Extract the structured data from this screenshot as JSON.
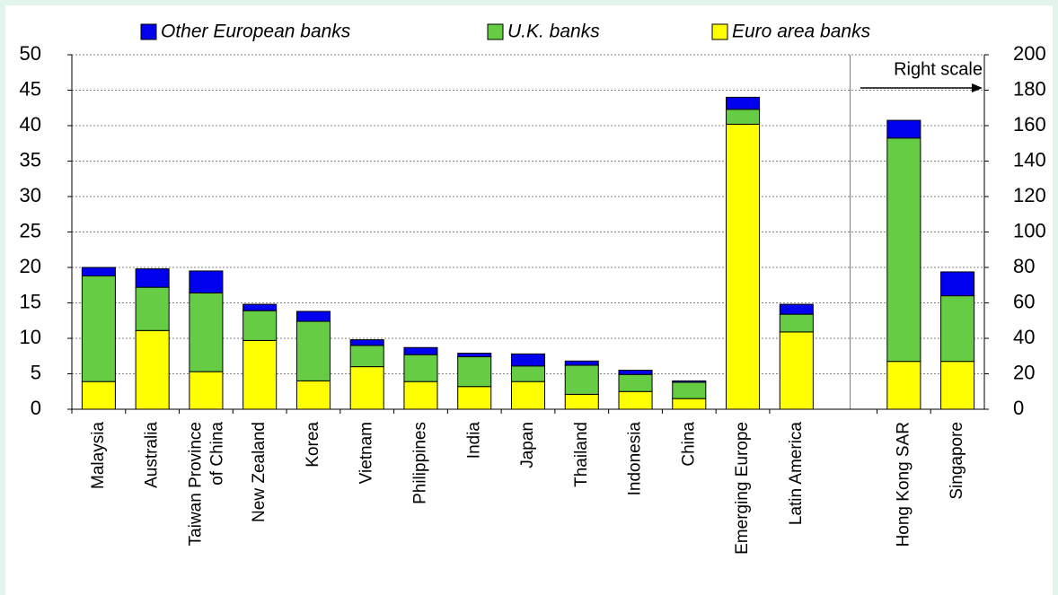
{
  "chart_data": {
    "type": "stacked_bar",
    "categories": [
      "Malaysia",
      "Australia",
      "Taiwan Province of China",
      "New Zealand",
      "Korea",
      "Vietnam",
      "Philippines",
      "India",
      "Japan",
      "Thailand",
      "Indonesia",
      "China",
      "Emerging Europe",
      "Latin America",
      null,
      "Hong Kong SAR",
      "Singapore"
    ],
    "series": [
      {
        "name": "Euro area  banks",
        "color": "#ffff00",
        "values": [
          3.9,
          11.1,
          5.3,
          9.7,
          4.0,
          6.0,
          3.9,
          3.2,
          3.9,
          2.1,
          2.5,
          1.5,
          40.2,
          10.9,
          null,
          null,
          null
        ]
      },
      {
        "name": "U.K. banks",
        "color": "#66cc44",
        "values": [
          14.9,
          6.1,
          11.1,
          4.2,
          8.4,
          3.0,
          3.8,
          4.2,
          2.2,
          4.1,
          2.4,
          2.3,
          2.1,
          2.5,
          null,
          null,
          null
        ]
      },
      {
        "name": "Other European banks",
        "color": "#0000ee",
        "values": [
          1.2,
          2.6,
          3.1,
          0.9,
          1.4,
          0.8,
          1.0,
          0.5,
          1.7,
          0.6,
          0.6,
          0.2,
          1.7,
          1.4,
          null,
          null,
          null
        ]
      },
      {
        "axis": "y2",
        "color": "#ffff00",
        "values": [
          null,
          null,
          null,
          null,
          null,
          null,
          null,
          null,
          null,
          null,
          null,
          null,
          null,
          null,
          null,
          27,
          27
        ]
      },
      {
        "axis": "y2",
        "color": "#66cc44",
        "values": [
          null,
          null,
          null,
          null,
          null,
          null,
          null,
          null,
          null,
          null,
          null,
          null,
          null,
          null,
          null,
          126,
          37
        ]
      },
      {
        "axis": "y2",
        "color": "#0000ee",
        "values": [
          null,
          null,
          null,
          null,
          null,
          null,
          null,
          null,
          null,
          null,
          null,
          null,
          null,
          null,
          null,
          10,
          13.5
        ]
      }
    ],
    "ylim": [
      0,
      50
    ],
    "yticks": [
      0,
      5,
      10,
      15,
      20,
      25,
      30,
      35,
      40,
      45,
      50
    ],
    "y2lim": [
      0,
      200
    ],
    "y2ticks": [
      0,
      20,
      40,
      60,
      80,
      100,
      120,
      140,
      160,
      180,
      200
    ],
    "annotation": "Right scale",
    "grid": true
  }
}
